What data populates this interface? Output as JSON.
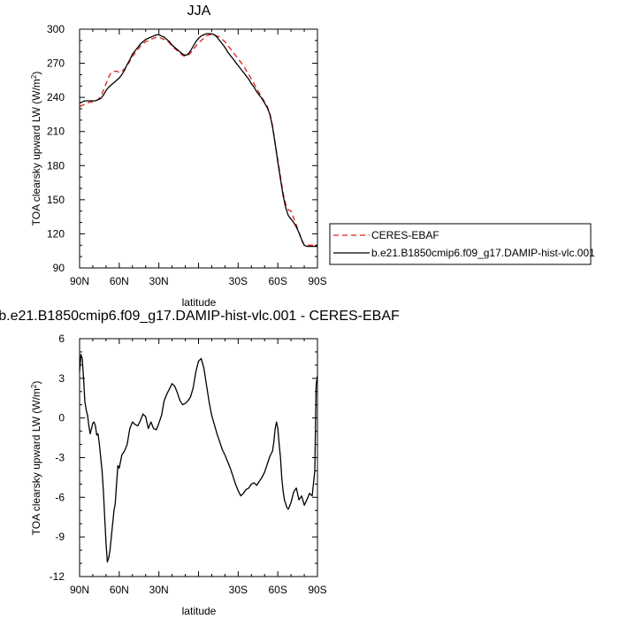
{
  "chart_data": [
    {
      "type": "line",
      "title": "JJA",
      "xlabel": "latitude",
      "ylabel": "TOA clearsky upward LW (W/m²)",
      "ylabel_main": "TOA clearsky upward LW (W/m",
      "ylabel_sup": "2",
      "ylabel_end": ")",
      "x_ticks": [
        90,
        60,
        30,
        0,
        -30,
        -60,
        -90
      ],
      "x_tick_labels": [
        "90N",
        "60N",
        "30N",
        "",
        "30S",
        "60S",
        "90S"
      ],
      "xlim": [
        90,
        -90
      ],
      "y_ticks": [
        90,
        120,
        150,
        180,
        210,
        240,
        270,
        300
      ],
      "y_tick_labels": [
        "90",
        "120",
        "150",
        "180",
        "210",
        "240",
        "270",
        "300"
      ],
      "ylim": [
        90,
        300
      ],
      "legend_position": "right",
      "series": [
        {
          "name": "CERES-EBAF",
          "color": "#dd1c1c",
          "style": "dashed",
          "x": [
            90,
            88,
            86,
            84,
            82,
            80,
            78,
            76,
            74,
            72,
            70,
            68,
            66,
            64,
            62,
            60,
            58,
            56,
            54,
            52,
            50,
            48,
            46,
            44,
            42,
            40,
            38,
            36,
            34,
            32,
            30,
            28,
            26,
            24,
            22,
            20,
            18,
            16,
            14,
            12,
            10,
            8,
            6,
            4,
            2,
            0,
            -2,
            -4,
            -6,
            -8,
            -10,
            -12,
            -14,
            -16,
            -18,
            -20,
            -22,
            -24,
            -26,
            -28,
            -30,
            -32,
            -34,
            -36,
            -38,
            -40,
            -42,
            -44,
            -46,
            -48,
            -50,
            -52,
            -54,
            -56,
            -58,
            -60,
            -62,
            -64,
            -66,
            -68,
            -70,
            -72,
            -74,
            -76,
            -78,
            -80,
            -82,
            -84,
            -86,
            -88,
            -90
          ],
          "y": [
            232,
            233,
            234,
            235,
            236,
            236,
            237,
            238,
            241,
            246,
            252,
            258,
            262,
            263,
            263,
            262,
            263,
            265,
            268,
            272,
            276,
            279,
            282,
            285,
            287,
            289,
            290,
            291,
            292,
            293,
            293,
            292,
            291,
            290,
            288,
            285,
            283,
            281,
            279,
            277,
            276,
            277,
            279,
            282,
            285,
            288,
            290,
            292,
            294,
            295,
            295,
            295,
            294,
            293,
            291,
            289,
            286,
            283,
            280,
            277,
            274,
            271,
            268,
            264,
            260,
            256,
            252,
            248,
            244,
            240,
            236,
            232,
            226,
            215,
            200,
            185,
            170,
            156,
            146,
            141,
            140,
            134,
            128,
            121,
            114,
            110,
            110,
            110,
            110,
            110,
            110
          ]
        },
        {
          "name": "b.e21.B1850cmip6.f09_g17.DAMIP-hist-vlc.001",
          "color": "#000000",
          "style": "solid",
          "x": [
            90,
            88,
            86,
            84,
            82,
            80,
            78,
            76,
            74,
            72,
            70,
            68,
            66,
            64,
            62,
            60,
            58,
            56,
            54,
            52,
            50,
            48,
            46,
            44,
            42,
            40,
            38,
            36,
            34,
            32,
            30,
            28,
            26,
            24,
            22,
            20,
            18,
            16,
            14,
            12,
            10,
            8,
            6,
            4,
            2,
            0,
            -2,
            -4,
            -6,
            -8,
            -10,
            -12,
            -14,
            -16,
            -18,
            -20,
            -22,
            -24,
            -26,
            -28,
            -30,
            -32,
            -34,
            -36,
            -38,
            -40,
            -42,
            -44,
            -46,
            -48,
            -50,
            -52,
            -54,
            -56,
            -58,
            -60,
            -62,
            -64,
            -66,
            -68,
            -70,
            -72,
            -74,
            -76,
            -78,
            -80,
            -82,
            -84,
            -86,
            -88,
            -90
          ],
          "y": [
            235,
            236,
            237,
            237,
            237,
            237,
            237,
            238,
            239,
            242,
            246,
            249,
            251,
            253,
            255,
            257,
            260,
            264,
            269,
            273,
            278,
            281,
            284,
            287,
            289,
            291,
            292,
            293,
            294,
            295,
            295,
            294,
            293,
            291,
            289,
            286,
            284,
            282,
            280,
            278,
            277,
            278,
            281,
            285,
            289,
            292,
            294,
            295,
            296,
            296,
            296,
            295,
            293,
            290,
            287,
            284,
            280,
            277,
            274,
            271,
            268,
            265,
            262,
            259,
            256,
            252,
            249,
            245,
            242,
            239,
            235,
            231,
            225,
            214,
            199,
            183,
            168,
            154,
            143,
            136,
            133,
            130,
            126,
            121,
            115,
            110,
            109,
            109,
            109,
            109,
            109
          ]
        }
      ]
    },
    {
      "type": "line",
      "title": "b.e21.B1850cmip6.f09_g17.DAMIP-hist-vlc.001 - CERES-EBAF",
      "xlabel": "latitude",
      "ylabel": "TOA clearsky upward LW (W/m²)",
      "ylabel_main": "TOA clearsky upward LW (W/m",
      "ylabel_sup": "2",
      "ylabel_end": ")",
      "x_ticks": [
        90,
        60,
        30,
        0,
        -30,
        -60,
        -90
      ],
      "x_tick_labels": [
        "90N",
        "60N",
        "30N",
        "",
        "30S",
        "60S",
        "90S"
      ],
      "xlim": [
        90,
        -90
      ],
      "y_ticks": [
        -12,
        -9,
        -6,
        -3,
        0,
        3,
        6
      ],
      "y_tick_labels": [
        "-12",
        "-9",
        "-6",
        "-3",
        "0",
        "3",
        "6"
      ],
      "ylim": [
        -12,
        6
      ],
      "series": [
        {
          "name": "",
          "color": "#000000",
          "style": "solid",
          "x": [
            90,
            89,
            88,
            87,
            86,
            85,
            84,
            83,
            82,
            81,
            80,
            79,
            78,
            77,
            76,
            75,
            74,
            73,
            72,
            71,
            70,
            69,
            68,
            67,
            66,
            65,
            64,
            63,
            62,
            61,
            60,
            58,
            56,
            54,
            52,
            50,
            48,
            46,
            44,
            42,
            40,
            38,
            36,
            34,
            32,
            30,
            28,
            26,
            24,
            22,
            20,
            18,
            16,
            14,
            12,
            10,
            8,
            6,
            4,
            2,
            0,
            -2,
            -4,
            -6,
            -8,
            -10,
            -12,
            -14,
            -16,
            -18,
            -20,
            -22,
            -24,
            -26,
            -28,
            -30,
            -32,
            -34,
            -36,
            -38,
            -40,
            -42,
            -44,
            -46,
            -48,
            -50,
            -52,
            -54,
            -56,
            -57,
            -58,
            -59,
            -60,
            -61,
            -62,
            -63,
            -64,
            -65,
            -66,
            -67,
            -68,
            -70,
            -72,
            -74,
            -76,
            -78,
            -80,
            -82,
            -84,
            -86,
            -88,
            -89,
            -90
          ],
          "y": [
            3.5,
            4.8,
            4.5,
            3.0,
            1.2,
            0.6,
            0.2,
            -0.6,
            -1.2,
            -0.8,
            -0.4,
            -0.3,
            -0.6,
            -1.3,
            -1.2,
            -2.0,
            -3.0,
            -4.0,
            -5.5,
            -7.5,
            -9.5,
            -10.9,
            -10.6,
            -10.0,
            -9.0,
            -8.0,
            -7.0,
            -6.5,
            -5.0,
            -3.6,
            -3.8,
            -2.8,
            -2.5,
            -2.0,
            -0.8,
            -0.3,
            -0.5,
            -0.6,
            -0.2,
            0.3,
            0.1,
            -0.8,
            -0.3,
            -0.8,
            -0.9,
            -0.4,
            0.2,
            1.3,
            1.8,
            2.2,
            2.6,
            2.4,
            1.9,
            1.3,
            1.0,
            1.1,
            1.3,
            1.6,
            2.3,
            3.5,
            4.3,
            4.5,
            3.8,
            2.5,
            1.2,
            0.2,
            -0.5,
            -1.2,
            -1.8,
            -2.4,
            -2.8,
            -3.3,
            -3.8,
            -4.4,
            -5.0,
            -5.5,
            -5.9,
            -5.7,
            -5.4,
            -5.3,
            -5.0,
            -4.9,
            -5.1,
            -4.8,
            -4.5,
            -4.1,
            -3.5,
            -2.9,
            -2.5,
            -1.8,
            -0.8,
            -0.3,
            -0.8,
            -2.0,
            -3.0,
            -4.5,
            -5.5,
            -6.2,
            -6.5,
            -6.8,
            -6.9,
            -6.4,
            -5.6,
            -5.3,
            -6.2,
            -5.9,
            -6.6,
            -6.2,
            -5.7,
            -5.9,
            -4.0,
            2.5,
            3.2
          ]
        }
      ]
    }
  ]
}
